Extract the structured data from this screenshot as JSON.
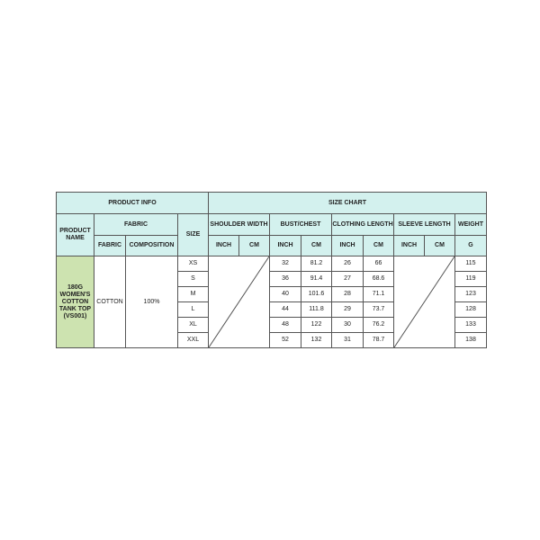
{
  "headers": {
    "product_info": "PRODUCT INFO",
    "size_chart": "SIZE CHART",
    "product_name": "PRODUCT NAME",
    "fabric_group": "FABRIC",
    "size": "SIZE",
    "shoulder_width": "SHOULDER WIDTH",
    "bust_chest": "BUST/CHEST",
    "clothing_length": "CLOTHING LENGTH",
    "sleeve_length": "SLEEVE LENGTH",
    "weight": "WEIGHT",
    "fabric": "FABRIC",
    "composition": "COMPOSITION",
    "inch": "INCH",
    "cm": "CM",
    "g": "G"
  },
  "product": {
    "name": "180G WOMEN'S COTTON TANK TOP (VS001)",
    "fabric": "COTTON",
    "composition": "100%"
  },
  "rows": [
    {
      "size": "XS",
      "bust_in": "32",
      "bust_cm": "81.2",
      "len_in": "26",
      "len_cm": "66",
      "weight": "115"
    },
    {
      "size": "S",
      "bust_in": "36",
      "bust_cm": "91.4",
      "len_in": "27",
      "len_cm": "68.6",
      "weight": "119"
    },
    {
      "size": "M",
      "bust_in": "40",
      "bust_cm": "101.6",
      "len_in": "28",
      "len_cm": "71.1",
      "weight": "123"
    },
    {
      "size": "L",
      "bust_in": "44",
      "bust_cm": "111.8",
      "len_in": "29",
      "len_cm": "73.7",
      "weight": "128"
    },
    {
      "size": "XL",
      "bust_in": "48",
      "bust_cm": "122",
      "len_in": "30",
      "len_cm": "76.2",
      "weight": "133"
    },
    {
      "size": "XXL",
      "bust_in": "52",
      "bust_cm": "132",
      "len_in": "31",
      "len_cm": "78.7",
      "weight": "138"
    }
  ],
  "colors": {
    "header_bg": "#d3f1ee",
    "product_name_bg": "#cde3b0",
    "border": "#555555"
  }
}
